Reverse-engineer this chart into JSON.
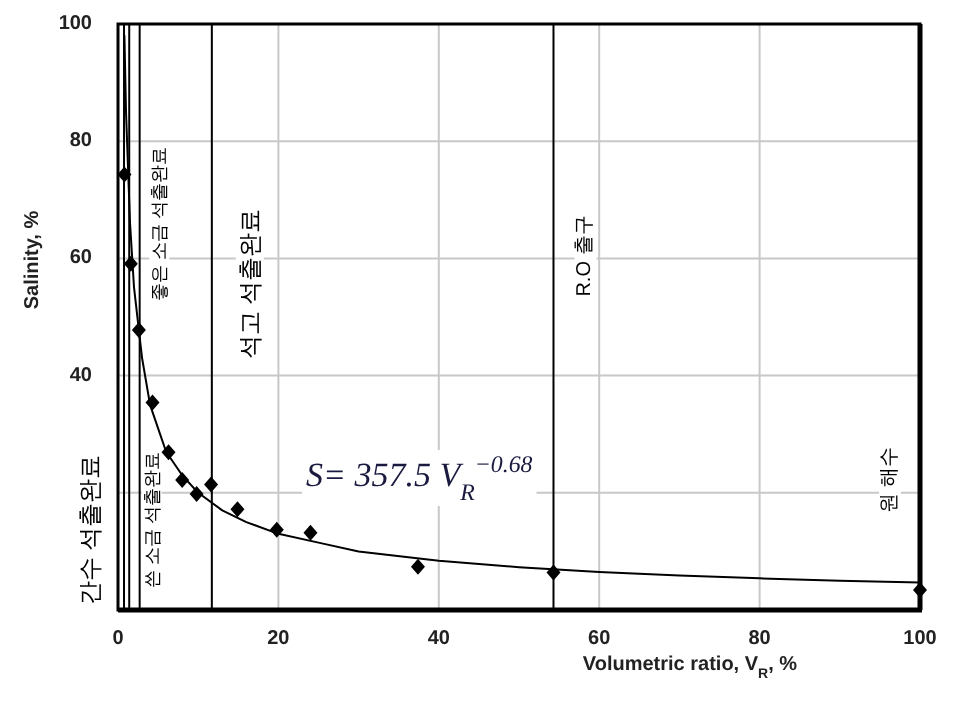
{
  "chart_data": {
    "type": "scatter",
    "xlabel": "Volumetric ratio, V$_{R}$,  %",
    "ylabel": "Salinity, %",
    "xlim": [
      0,
      100
    ],
    "ylim": [
      0,
      100
    ],
    "xticks": [
      0,
      20,
      40,
      60,
      80,
      100
    ],
    "yticks": [
      {
        "value": 0,
        "label": null
      },
      {
        "value": 20,
        "label": null
      },
      40,
      60,
      80,
      100
    ],
    "grid": true,
    "series": [
      {
        "type": "scatter",
        "color": "#000000",
        "marker": "diamond",
        "x": [
          0.8,
          1.6,
          2.6,
          4.3,
          6.3,
          8.0,
          9.8,
          11.6,
          14.9,
          19.8,
          24.0,
          37.4,
          54.3,
          100
        ],
        "values": [
          74.3,
          59.1,
          47.8,
          35.4,
          26.9,
          22.2,
          19.8,
          21.4,
          17.2,
          13.7,
          13.2,
          7.4,
          6.4,
          3.4
        ]
      },
      {
        "type": "line",
        "color": "#000000",
        "marker": "none",
        "line_style": "solid",
        "x": [
          0.8,
          1,
          1.5,
          2,
          3,
          4,
          5,
          6,
          8,
          10,
          13,
          16,
          20,
          25,
          30,
          40,
          50,
          60,
          70,
          80,
          90,
          100
        ],
        "values": [
          98,
          85,
          66,
          55,
          43,
          35,
          31,
          27,
          23,
          20,
          17,
          15,
          13,
          11.5,
          10,
          8.4,
          7.3,
          6.5,
          5.9,
          5.4,
          5.0,
          4.7
        ]
      }
    ],
    "ref_lines": [
      {
        "axis": "x",
        "value": 0.75,
        "label": "간수 석출완료",
        "color": "#000000"
      },
      {
        "axis": "x",
        "value": 1.4,
        "label": "좋은 소금 석출완료",
        "color": "#000000"
      },
      {
        "axis": "x",
        "value": 2.7,
        "label": "쓴 소금 석출완료",
        "color": "#000000"
      },
      {
        "axis": "x",
        "value": 11.7,
        "label": "석고 석출완료",
        "color": "#000000"
      },
      {
        "axis": "x",
        "value": 54.3,
        "label": "R.O 출구",
        "color": "#000000"
      },
      {
        "axis": "x",
        "value": 100,
        "label": "원 해수",
        "color": "#000000"
      }
    ],
    "annotations": [
      "S= 357.5 V$_{R}$$^{−0.68}$"
    ]
  }
}
